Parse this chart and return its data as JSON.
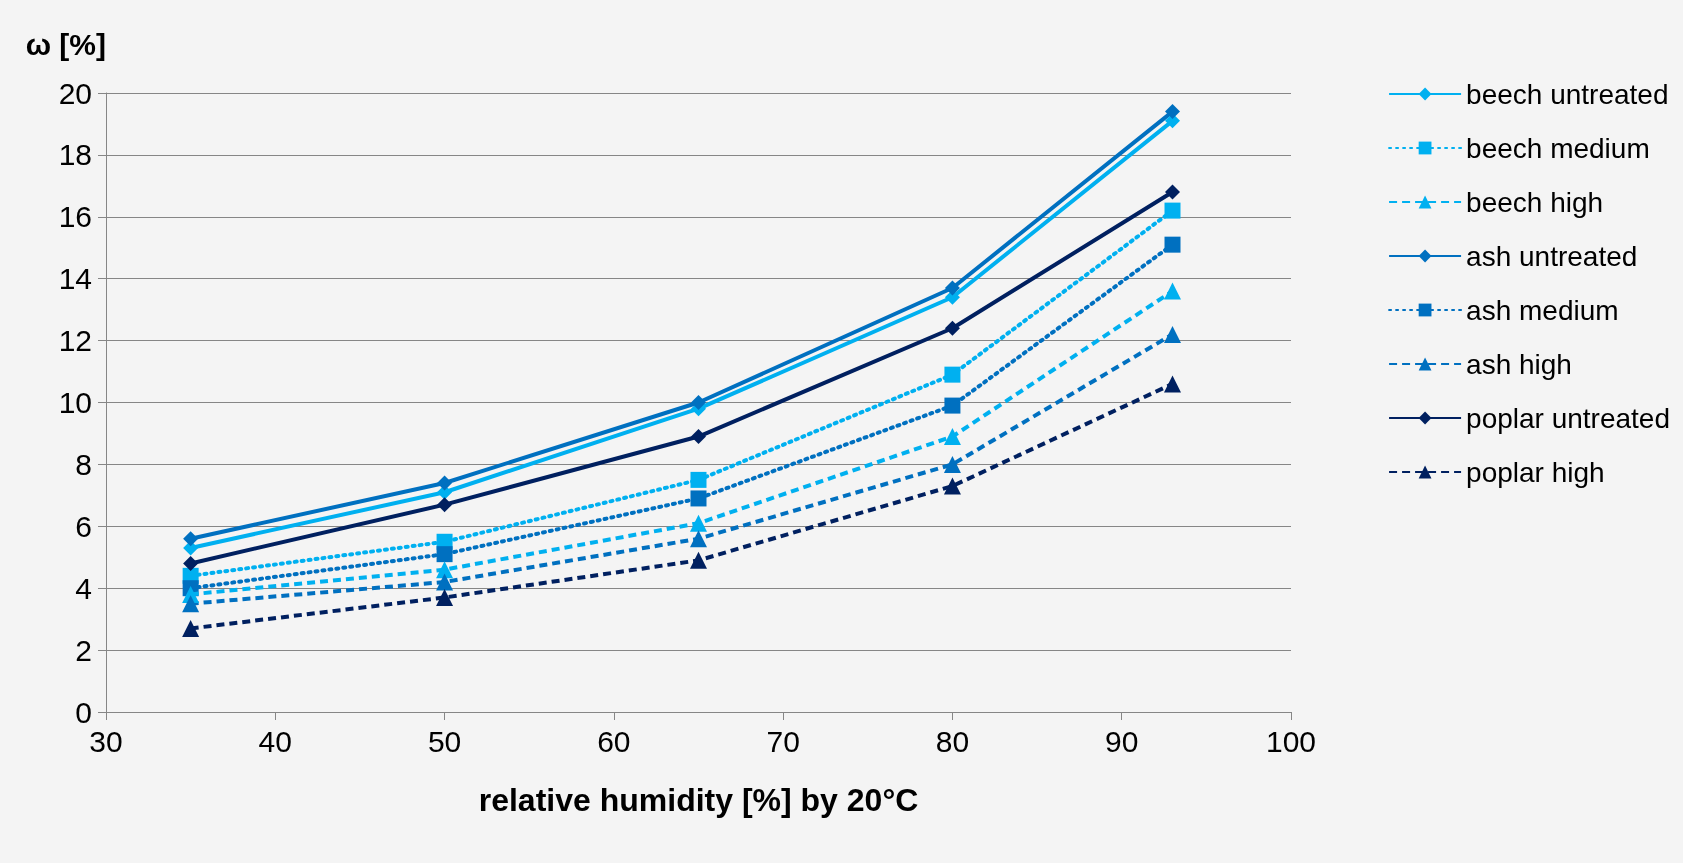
{
  "chart_data": {
    "type": "line",
    "xlabel": "relative humidity [%] by 20°C",
    "ylabel": "ω [%]",
    "x": [
      35,
      50,
      65,
      80,
      93
    ],
    "xlim": [
      30,
      100
    ],
    "xticks": [
      30,
      40,
      50,
      60,
      70,
      80,
      90,
      100
    ],
    "ylim": [
      0,
      20
    ],
    "yticks": [
      0,
      2,
      4,
      6,
      8,
      10,
      12,
      14,
      16,
      18,
      20
    ],
    "grid": "y",
    "legend": "right",
    "series": [
      {
        "name": "beech untreated",
        "color": "#00b0f0",
        "marker": "diamond",
        "line_style": "solid",
        "values": [
          5.3,
          7.1,
          9.8,
          13.4,
          19.1
        ]
      },
      {
        "name": "beech medium",
        "color": "#00b0f0",
        "marker": "square",
        "line_style": "dotted",
        "values": [
          4.4,
          5.5,
          7.5,
          10.9,
          16.2
        ]
      },
      {
        "name": "beech high",
        "color": "#00b0f0",
        "marker": "triangle",
        "line_style": "dashed",
        "values": [
          3.8,
          4.6,
          6.1,
          8.9,
          13.6
        ]
      },
      {
        "name": "ash untreated",
        "color": "#0070c0",
        "marker": "diamond",
        "line_style": "solid",
        "values": [
          5.6,
          7.4,
          10.0,
          13.7,
          19.4
        ]
      },
      {
        "name": "ash medium",
        "color": "#0070c0",
        "marker": "square",
        "line_style": "dotted",
        "values": [
          4.0,
          5.1,
          6.9,
          9.9,
          15.1
        ]
      },
      {
        "name": "ash high",
        "color": "#0070c0",
        "marker": "triangle",
        "line_style": "dashed",
        "values": [
          3.5,
          4.2,
          5.6,
          8.0,
          12.2
        ]
      },
      {
        "name": "poplar untreated",
        "color": "#002060",
        "marker": "diamond",
        "line_style": "solid",
        "values": [
          4.8,
          6.7,
          8.9,
          12.4,
          16.8
        ]
      },
      {
        "name": "poplar high",
        "color": "#002060",
        "marker": "triangle",
        "line_style": "dashed",
        "values": [
          2.7,
          3.7,
          4.9,
          7.3,
          10.6
        ]
      }
    ]
  }
}
